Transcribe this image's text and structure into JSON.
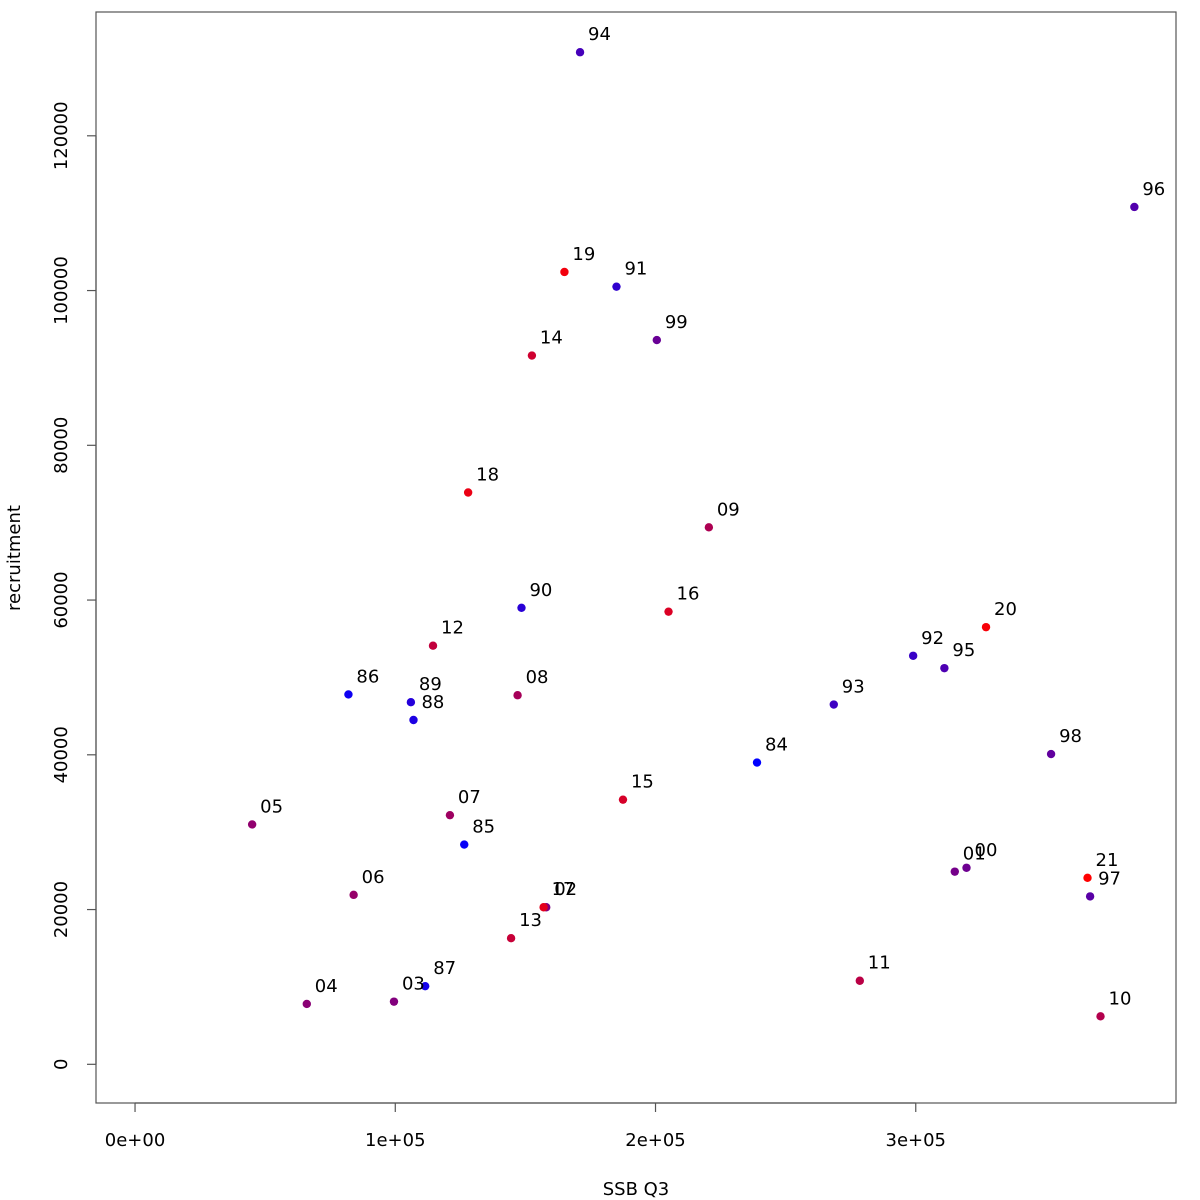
{
  "chart_data": {
    "type": "scatter",
    "title": "",
    "xlabel": "SSB Q3",
    "ylabel": "recruitment",
    "xlim": [
      -15000,
      400000
    ],
    "ylim": [
      -5000,
      136000
    ],
    "xticks": [
      0,
      100000,
      200000,
      300000
    ],
    "xtick_labels": [
      "0e+00",
      "1e+05",
      "2e+05",
      "3e+05"
    ],
    "yticks": [
      0,
      20000,
      40000,
      60000,
      80000,
      100000,
      120000
    ],
    "ytick_labels": [
      "0",
      "20000",
      "40000",
      "60000",
      "80000",
      "100000",
      "120000"
    ],
    "grid": false,
    "legend": "none",
    "color_start": "#0000ff",
    "color_end": "#ff0000",
    "points": [
      {
        "label": "84",
        "x": 239000,
        "y": 39000,
        "c": 0.0
      },
      {
        "label": "85",
        "x": 126500,
        "y": 28400,
        "c": 0.03
      },
      {
        "label": "86",
        "x": 82000,
        "y": 47800,
        "c": 0.05
      },
      {
        "label": "87",
        "x": 111500,
        "y": 10100,
        "c": 0.08
      },
      {
        "label": "88",
        "x": 107000,
        "y": 44500,
        "c": 0.11
      },
      {
        "label": "89",
        "x": 106000,
        "y": 46800,
        "c": 0.14
      },
      {
        "label": "90",
        "x": 148500,
        "y": 59000,
        "c": 0.16
      },
      {
        "label": "91",
        "x": 185000,
        "y": 100500,
        "c": 0.19
      },
      {
        "label": "92",
        "x": 299000,
        "y": 52800,
        "c": 0.22
      },
      {
        "label": "93",
        "x": 268500,
        "y": 46500,
        "c": 0.24
      },
      {
        "label": "94",
        "x": 171000,
        "y": 130800,
        "c": 0.27
      },
      {
        "label": "95",
        "x": 311000,
        "y": 51200,
        "c": 0.3
      },
      {
        "label": "96",
        "x": 384000,
        "y": 110800,
        "c": 0.32
      },
      {
        "label": "97",
        "x": 367000,
        "y": 21700,
        "c": 0.35
      },
      {
        "label": "98",
        "x": 352000,
        "y": 40100,
        "c": 0.38
      },
      {
        "label": "99",
        "x": 200500,
        "y": 93600,
        "c": 0.41
      },
      {
        "label": "00",
        "x": 319500,
        "y": 25400,
        "c": 0.43
      },
      {
        "label": "01",
        "x": 315000,
        "y": 24900,
        "c": 0.46
      },
      {
        "label": "02",
        "x": 158000,
        "y": 20300,
        "c": 0.49
      },
      {
        "label": "03",
        "x": 99500,
        "y": 8100,
        "c": 0.51
      },
      {
        "label": "04",
        "x": 66000,
        "y": 7800,
        "c": 0.54
      },
      {
        "label": "05",
        "x": 45000,
        "y": 31000,
        "c": 0.57
      },
      {
        "label": "06",
        "x": 84000,
        "y": 21900,
        "c": 0.59
      },
      {
        "label": "07",
        "x": 121000,
        "y": 32200,
        "c": 0.62
      },
      {
        "label": "08",
        "x": 147000,
        "y": 47700,
        "c": 0.65
      },
      {
        "label": "09",
        "x": 220500,
        "y": 69400,
        "c": 0.68
      },
      {
        "label": "10",
        "x": 371000,
        "y": 6200,
        "c": 0.7
      },
      {
        "label": "11",
        "x": 278500,
        "y": 10800,
        "c": 0.73
      },
      {
        "label": "12",
        "x": 114500,
        "y": 54100,
        "c": 0.76
      },
      {
        "label": "13",
        "x": 144500,
        "y": 16300,
        "c": 0.78
      },
      {
        "label": "14",
        "x": 152500,
        "y": 91600,
        "c": 0.81
      },
      {
        "label": "15",
        "x": 187500,
        "y": 34200,
        "c": 0.84
      },
      {
        "label": "16",
        "x": 205000,
        "y": 58500,
        "c": 0.86
      },
      {
        "label": "17",
        "x": 157000,
        "y": 20300,
        "c": 0.89
      },
      {
        "label": "18",
        "x": 128000,
        "y": 73900,
        "c": 0.92
      },
      {
        "label": "19",
        "x": 165000,
        "y": 102400,
        "c": 0.95
      },
      {
        "label": "20",
        "x": 327000,
        "y": 56500,
        "c": 0.97
      },
      {
        "label": "21",
        "x": 366000,
        "y": 24100,
        "c": 1.0
      }
    ]
  }
}
